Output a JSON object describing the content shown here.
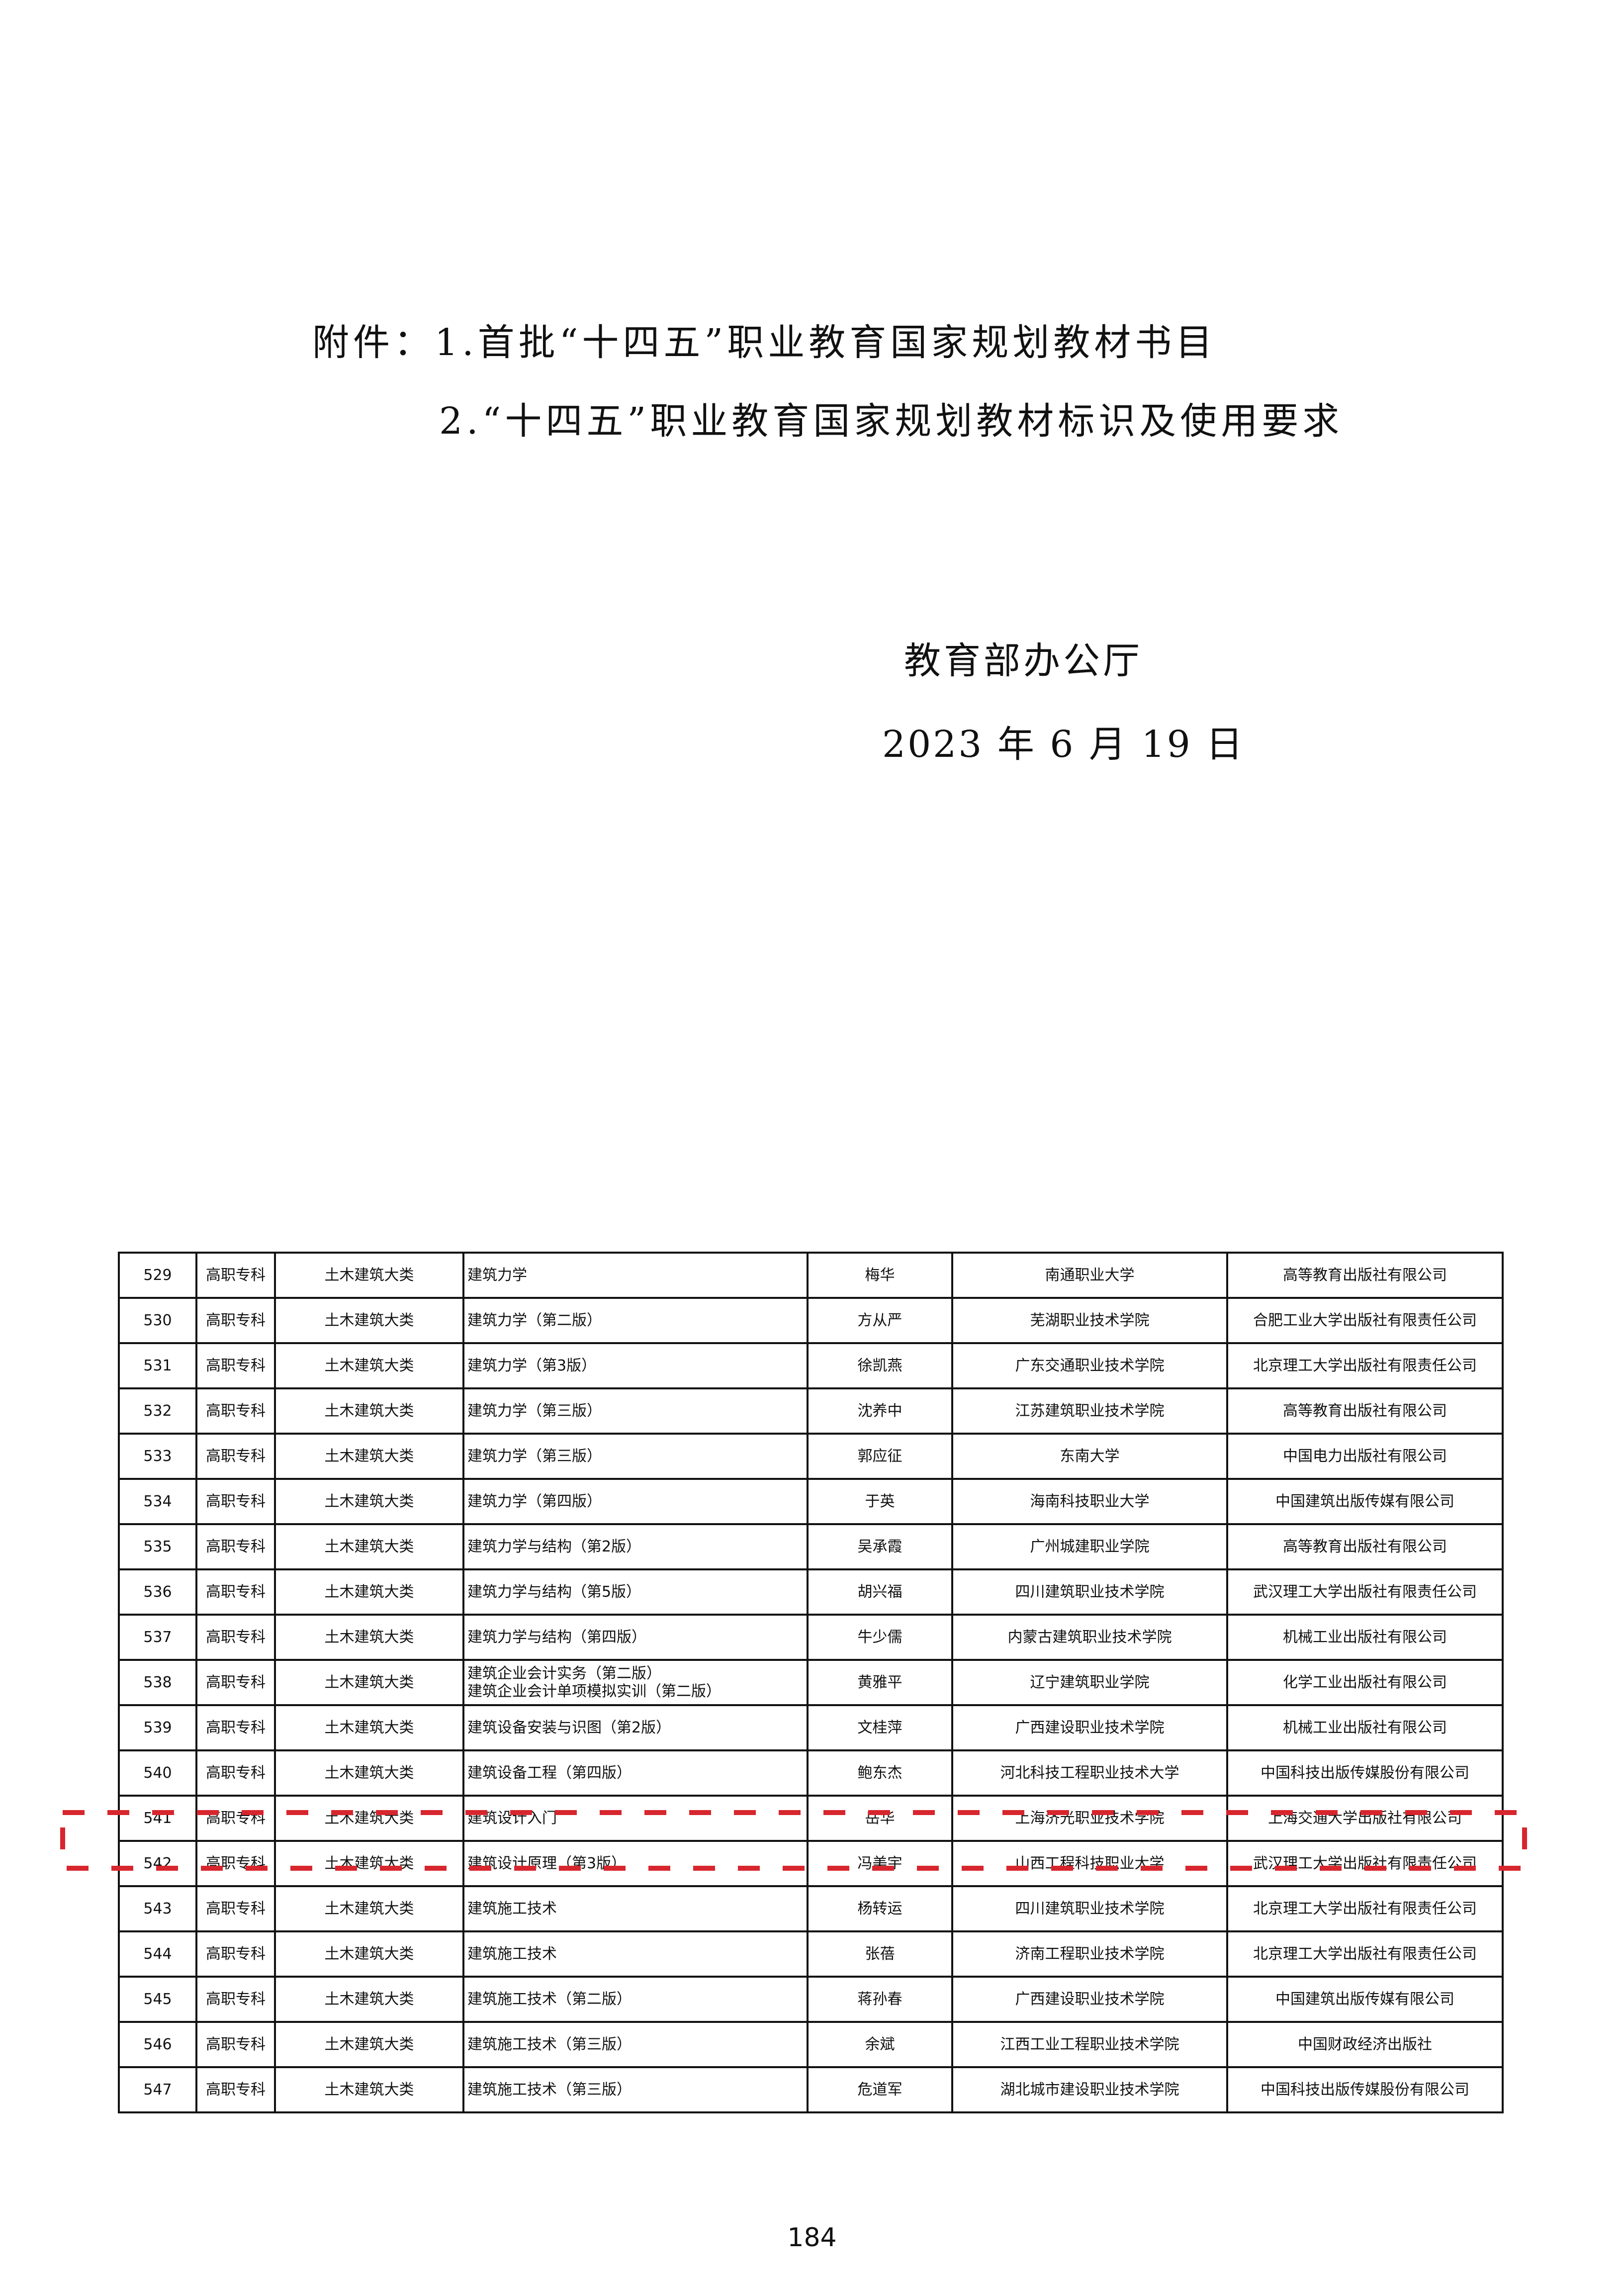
{
  "attachments": {
    "line1": "附件：1.首批“十四五”职业教育国家规划教材书目",
    "line2": "2.“十四五”职业教育国家规划教材标识及使用要求"
  },
  "issuer": "教育部办公厅",
  "date": "2023 年 6  月 19 日",
  "page_number": "184",
  "highlight_color": "#d7262e",
  "highlighted_row": "541",
  "table": {
    "rows": [
      [
        "529",
        "高职专科",
        "土木建筑大类",
        "建筑力学",
        "梅华",
        "南通职业大学",
        "高等教育出版社有限公司"
      ],
      [
        "530",
        "高职专科",
        "土木建筑大类",
        "建筑力学（第二版）",
        "方从严",
        "芜湖职业技术学院",
        "合肥工业大学出版社有限责任公司"
      ],
      [
        "531",
        "高职专科",
        "土木建筑大类",
        "建筑力学（第3版）",
        "徐凯燕",
        "广东交通职业技术学院",
        "北京理工大学出版社有限责任公司"
      ],
      [
        "532",
        "高职专科",
        "土木建筑大类",
        "建筑力学（第三版）",
        "沈养中",
        "江苏建筑职业技术学院",
        "高等教育出版社有限公司"
      ],
      [
        "533",
        "高职专科",
        "土木建筑大类",
        "建筑力学（第三版）",
        "郭应征",
        "东南大学",
        "中国电力出版社有限公司"
      ],
      [
        "534",
        "高职专科",
        "土木建筑大类",
        "建筑力学（第四版）",
        "于英",
        "海南科技职业大学",
        "中国建筑出版传媒有限公司"
      ],
      [
        "535",
        "高职专科",
        "土木建筑大类",
        "建筑力学与结构（第2版）",
        "吴承霞",
        "广州城建职业学院",
        "高等教育出版社有限公司"
      ],
      [
        "536",
        "高职专科",
        "土木建筑大类",
        "建筑力学与结构（第5版）",
        "胡兴福",
        "四川建筑职业技术学院",
        "武汉理工大学出版社有限责任公司"
      ],
      [
        "537",
        "高职专科",
        "土木建筑大类",
        "建筑力学与结构（第四版）",
        "牛少儒",
        "内蒙古建筑职业技术学院",
        "机械工业出版社有限公司"
      ],
      [
        "538",
        "高职专科",
        "土木建筑大类",
        "建筑企业会计实务（第二版）\n建筑企业会计单项模拟实训（第二版）",
        "黄雅平",
        "辽宁建筑职业学院",
        "化学工业出版社有限公司"
      ],
      [
        "539",
        "高职专科",
        "土木建筑大类",
        "建筑设备安装与识图（第2版）",
        "文桂萍",
        "广西建设职业技术学院",
        "机械工业出版社有限公司"
      ],
      [
        "540",
        "高职专科",
        "土木建筑大类",
        "建筑设备工程（第四版）",
        "鲍东杰",
        "河北科技工程职业技术大学",
        "中国科技出版传媒股份有限公司"
      ],
      [
        "541",
        "高职专科",
        "土木建筑大类",
        "建筑设计入门",
        "岳华",
        "上海济光职业技术学院",
        "上海交通大学出版社有限公司"
      ],
      [
        "542",
        "高职专科",
        "土木建筑大类",
        "建筑设计原理（第3版）",
        "冯美宇",
        "山西工程科技职业大学",
        "武汉理工大学出版社有限责任公司"
      ],
      [
        "543",
        "高职专科",
        "土木建筑大类",
        "建筑施工技术",
        "杨转运",
        "四川建筑职业技术学院",
        "北京理工大学出版社有限责任公司"
      ],
      [
        "544",
        "高职专科",
        "土木建筑大类",
        "建筑施工技术",
        "张蓓",
        "济南工程职业技术学院",
        "北京理工大学出版社有限责任公司"
      ],
      [
        "545",
        "高职专科",
        "土木建筑大类",
        "建筑施工技术（第二版）",
        "蒋孙春",
        "广西建设职业技术学院",
        "中国建筑出版传媒有限公司"
      ],
      [
        "546",
        "高职专科",
        "土木建筑大类",
        "建筑施工技术（第三版）",
        "余斌",
        "江西工业工程职业技术学院",
        "中国财政经济出版社"
      ],
      [
        "547",
        "高职专科",
        "土木建筑大类",
        "建筑施工技术（第三版）",
        "危道军",
        "湖北城市建设职业技术学院",
        "中国科技出版传媒股份有限公司"
      ]
    ]
  }
}
